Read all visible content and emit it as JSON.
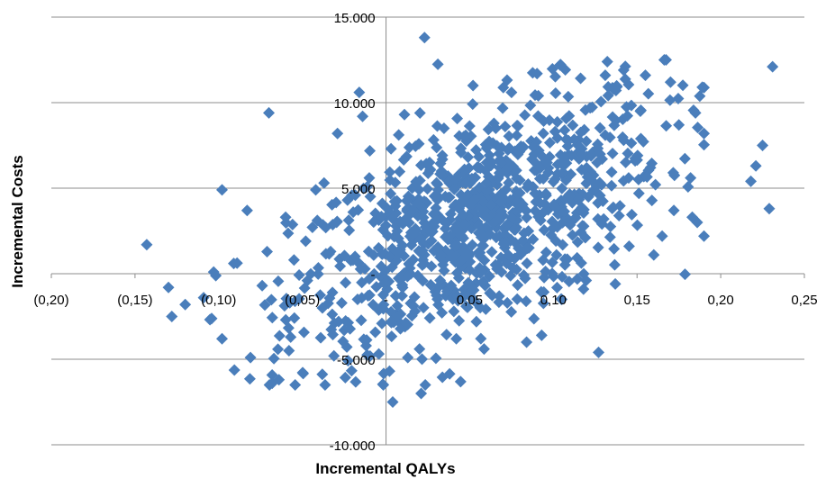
{
  "chart_data": {
    "type": "scatter",
    "title": "",
    "xlabel": "Incremental QALYs",
    "ylabel": "Incremental Costs",
    "xlim": [
      -0.2,
      0.25
    ],
    "ylim": [
      -10000,
      15000
    ],
    "x_ticks": [
      -0.2,
      -0.15,
      -0.1,
      -0.05,
      0,
      0.05,
      0.1,
      0.15,
      0.2,
      0.25
    ],
    "x_tick_labels": [
      "(0,20)",
      "(0,15)",
      "(0,10)",
      "(0,05)",
      "-",
      "0,05",
      "0,10",
      "0,15",
      "0,20",
      "0,25"
    ],
    "y_ticks": [
      -10000,
      -5000,
      0,
      5000,
      10000,
      15000
    ],
    "y_tick_labels": [
      "-10.000",
      "-5.000",
      "-",
      "5.000",
      "10.000",
      "15.000"
    ],
    "grid": "horizontal",
    "legend": "none",
    "marker": "diamond",
    "color": "#4a7ebb",
    "approx_points": 1000,
    "bulk": {
      "x_mean": 0.055,
      "x_sd": 0.055,
      "y_mean": 3000,
      "y_sd": 3800,
      "slope": 40000
    },
    "series": [
      {
        "points": [
          [
            0.023,
            13800
          ],
          [
            0.231,
            12100
          ],
          [
            0.104,
            12200
          ],
          [
            0.229,
            3800
          ],
          [
            0.225,
            7500
          ],
          [
            0.221,
            6300
          ],
          [
            0.218,
            5400
          ],
          [
            -0.143,
            1700
          ],
          [
            -0.128,
            -2500
          ],
          [
            -0.07,
            9400
          ],
          [
            -0.016,
            10600
          ],
          [
            -0.014,
            9200
          ],
          [
            -0.098,
            4900
          ],
          [
            0.004,
            -7500
          ],
          [
            0.021,
            -7000
          ],
          [
            -0.068,
            -6400
          ],
          [
            -0.064,
            -6200
          ],
          [
            -0.081,
            -4900
          ],
          [
            0.127,
            -4600
          ],
          [
            0.189,
            10900
          ],
          [
            0.182,
            5600
          ],
          [
            0.19,
            8200
          ],
          [
            0.17,
            11200
          ],
          [
            0.155,
            11600
          ],
          [
            0.142,
            11900
          ],
          [
            0.131,
            11600
          ],
          [
            0.183,
            3300
          ],
          [
            0.142,
            7800
          ],
          [
            0.152,
            9500
          ],
          [
            0.175,
            8700
          ],
          [
            -0.098,
            -3800
          ],
          [
            -0.058,
            -4500
          ],
          [
            -0.032,
            -1100
          ],
          [
            -0.091,
            600
          ],
          [
            -0.103,
            100
          ],
          [
            -0.109,
            -1400
          ],
          [
            -0.12,
            -1800
          ],
          [
            -0.074,
            -700
          ],
          [
            -0.083,
            3700
          ],
          [
            -0.06,
            3300
          ],
          [
            -0.042,
            4900
          ],
          [
            -0.029,
            8200
          ],
          [
            0.052,
            11000
          ],
          [
            0.075,
            10600
          ],
          [
            0.091,
            10400
          ],
          [
            0.013,
            -4900
          ],
          [
            0.02,
            -4400
          ],
          [
            0.042,
            -3800
          ],
          [
            0.054,
            -2800
          ],
          [
            0.084,
            -4000
          ],
          [
            0.093,
            -3600
          ],
          [
            0.105,
            -1500
          ],
          [
            0.118,
            -900
          ],
          [
            0.137,
            -600
          ],
          [
            0.16,
            1100
          ],
          [
            0.165,
            2200
          ],
          [
            0.172,
            3700
          ],
          [
            0.158,
            6200
          ],
          [
            0.145,
            5600
          ],
          [
            0.122,
            9700
          ],
          [
            0.011,
            9300
          ],
          [
            0.003,
            7300
          ],
          [
            -0.01,
            5600
          ],
          [
            -0.023,
            4300
          ],
          [
            -0.036,
            2700
          ],
          [
            -0.048,
            1900
          ],
          [
            -0.055,
            800
          ],
          [
            -0.047,
            -400
          ],
          [
            -0.038,
            -2000
          ],
          [
            -0.025,
            -3300
          ],
          [
            -0.017,
            -1500
          ],
          [
            -0.01,
            -300
          ],
          [
            0.002,
            1000
          ],
          [
            0.015,
            2400
          ],
          [
            0.03,
            3100
          ],
          [
            0.045,
            4200
          ],
          [
            0.06,
            5300
          ],
          [
            0.072,
            6100
          ],
          [
            0.088,
            7400
          ],
          [
            0.101,
            8300
          ]
        ]
      }
    ]
  }
}
